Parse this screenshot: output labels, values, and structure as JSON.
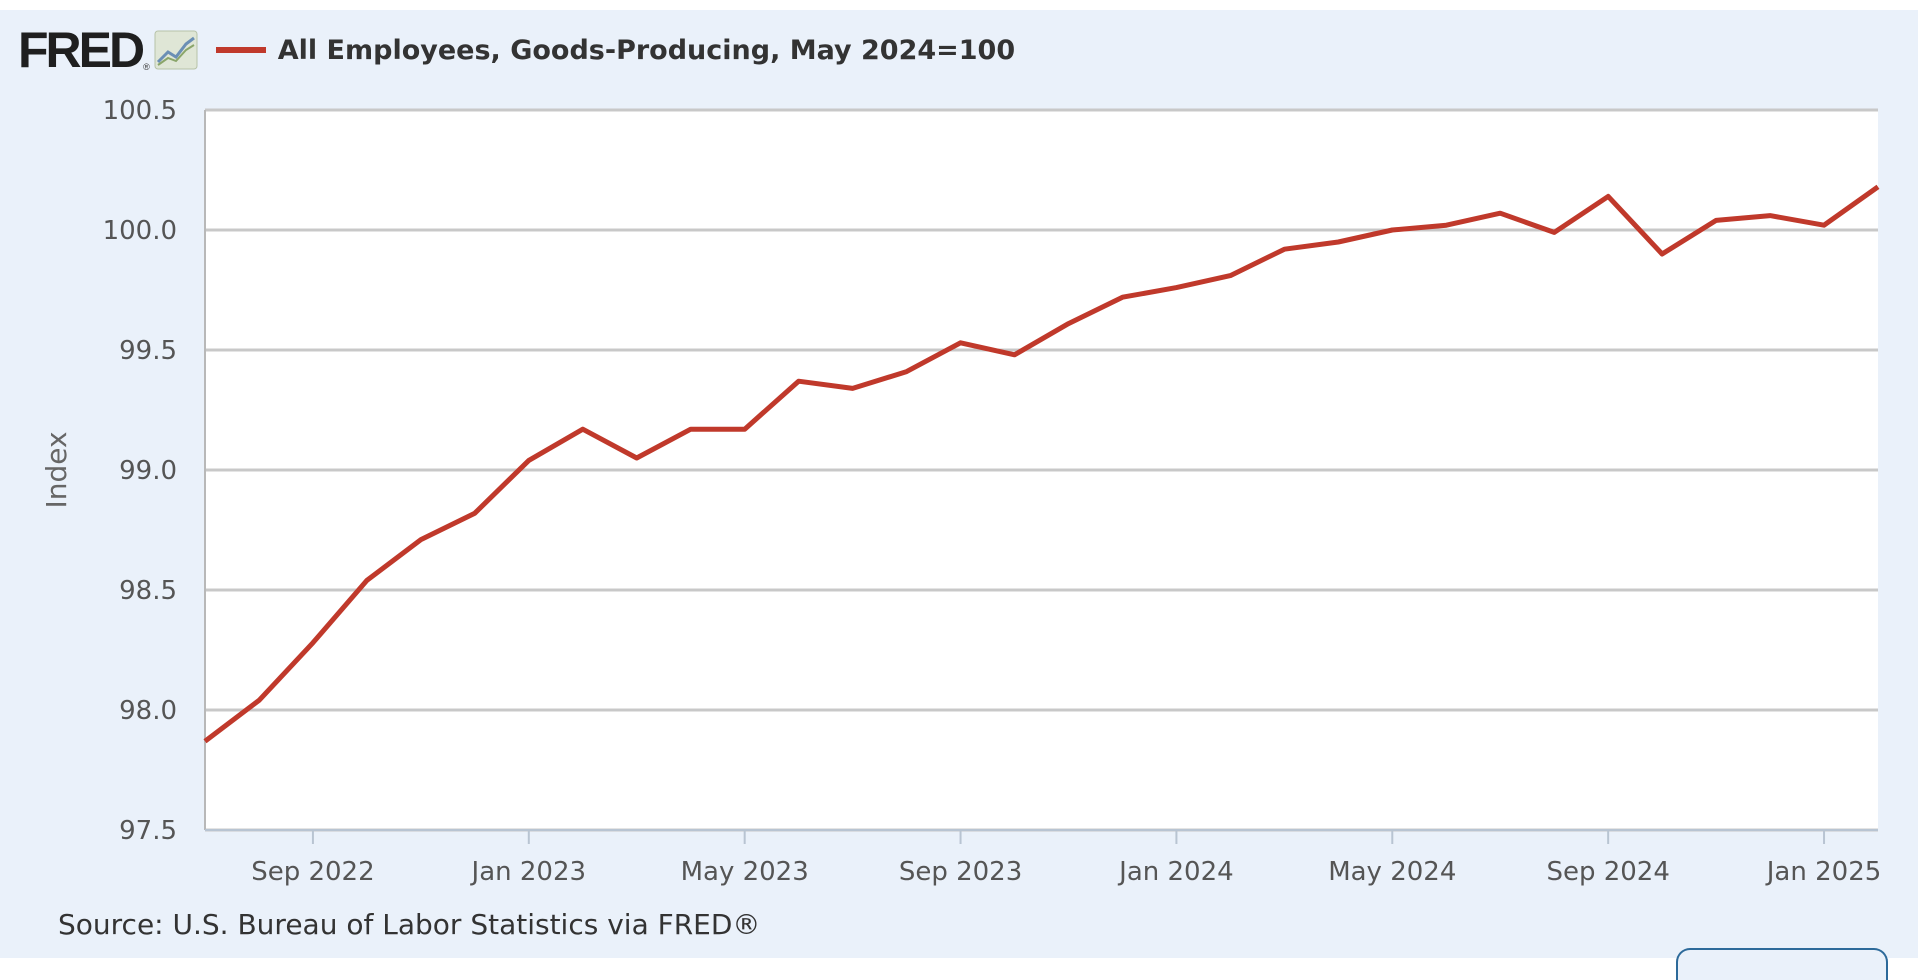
{
  "logo": {
    "text": "FRED",
    "reg": "®"
  },
  "colors": {
    "background": "#eaf1fa",
    "plot_background": "#ffffff",
    "series": "#c0392b",
    "grid": "#c8c8c8"
  },
  "source_text": "Source: U.S. Bureau of Labor Statistics via FRED®",
  "chart_data": {
    "type": "line",
    "title": "All Employees, Goods-Producing, May 2024=100",
    "ylabel": "Index",
    "xlabel": "",
    "ylim": [
      97.5,
      100.5
    ],
    "xlim": [
      "2022-07",
      "2025-02"
    ],
    "yticks": [
      "97.5",
      "98.0",
      "98.5",
      "99.0",
      "99.5",
      "100.0",
      "100.5"
    ],
    "xticks": [
      {
        "date": "2022-09",
        "label": "Sep 2022"
      },
      {
        "date": "2023-01",
        "label": "Jan 2023"
      },
      {
        "date": "2023-05",
        "label": "May 2023"
      },
      {
        "date": "2023-09",
        "label": "Sep 2023"
      },
      {
        "date": "2024-01",
        "label": "Jan 2024"
      },
      {
        "date": "2024-05",
        "label": "May 2024"
      },
      {
        "date": "2024-09",
        "label": "Sep 2024"
      },
      {
        "date": "2025-01",
        "label": "Jan 2025"
      }
    ],
    "grid": true,
    "series": [
      {
        "name": "All Employees, Goods-Producing, May 2024=100",
        "color": "#c0392b",
        "x": [
          "2022-07",
          "2022-08",
          "2022-09",
          "2022-10",
          "2022-11",
          "2022-12",
          "2023-01",
          "2023-02",
          "2023-03",
          "2023-04",
          "2023-05",
          "2023-06",
          "2023-07",
          "2023-08",
          "2023-09",
          "2023-10",
          "2023-11",
          "2023-12",
          "2024-01",
          "2024-02",
          "2024-03",
          "2024-04",
          "2024-05",
          "2024-06",
          "2024-07",
          "2024-08",
          "2024-09",
          "2024-10",
          "2024-11",
          "2024-12",
          "2025-01",
          "2025-02"
        ],
        "values": [
          97.87,
          98.04,
          98.28,
          98.54,
          98.71,
          98.82,
          99.04,
          99.17,
          99.05,
          99.17,
          99.17,
          99.37,
          99.34,
          99.41,
          99.53,
          99.48,
          99.61,
          99.72,
          99.76,
          99.81,
          99.92,
          99.95,
          100.0,
          100.02,
          100.07,
          99.99,
          100.14,
          99.9,
          100.04,
          100.06,
          100.02,
          100.18
        ]
      }
    ]
  }
}
